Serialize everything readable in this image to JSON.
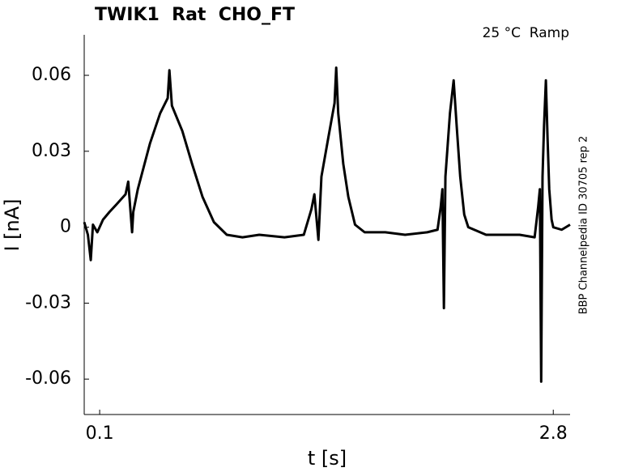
{
  "chart_data": {
    "type": "line",
    "title": "TWIK1  Rat  CHO_FT",
    "annotation": "25 °C  Ramp",
    "side_label": "BBP Channelpedia ID 30705 rep 2",
    "xlabel": "t [s]",
    "ylabel": "I [nA]",
    "color": "#000000",
    "xlim": [
      0.008,
      2.9
    ],
    "ylim": [
      -0.074,
      0.076
    ],
    "xticks": [
      0.1,
      2.8
    ],
    "yticks": [
      -0.06,
      -0.03,
      0,
      0.03,
      0.06
    ],
    "x": [
      0.008,
      0.03,
      0.047,
      0.06,
      0.086,
      0.12,
      0.158,
      0.2,
      0.254,
      0.27,
      0.293,
      0.3,
      0.327,
      0.399,
      0.46,
      0.505,
      0.515,
      0.53,
      0.592,
      0.65,
      0.712,
      0.78,
      0.857,
      0.95,
      1.05,
      1.2,
      1.315,
      1.36,
      1.378,
      1.402,
      1.42,
      1.46,
      1.498,
      1.508,
      1.52,
      1.55,
      1.58,
      1.62,
      1.677,
      1.8,
      1.918,
      2.05,
      2.111,
      2.13,
      2.14,
      2.149,
      2.158,
      2.185,
      2.207,
      2.225,
      2.246,
      2.27,
      2.294,
      2.4,
      2.496,
      2.6,
      2.689,
      2.71,
      2.72,
      2.728,
      2.736,
      2.745,
      2.756,
      2.766,
      2.776,
      2.79,
      2.8,
      2.85,
      2.9
    ],
    "values": [
      0.002,
      -0.003,
      -0.013,
      0.001,
      -0.002,
      0.003,
      0.006,
      0.009,
      0.013,
      0.018,
      -0.002,
      0.006,
      0.015,
      0.033,
      0.045,
      0.051,
      0.062,
      0.048,
      0.038,
      0.025,
      0.012,
      0.002,
      -0.003,
      -0.004,
      -0.003,
      -0.004,
      -0.003,
      0.007,
      0.013,
      -0.005,
      0.02,
      0.035,
      0.049,
      0.063,
      0.045,
      0.025,
      0.012,
      0.001,
      -0.002,
      -0.002,
      -0.003,
      -0.002,
      -0.001,
      0.008,
      0.015,
      -0.032,
      0.02,
      0.045,
      0.058,
      0.04,
      0.02,
      0.005,
      0.0,
      -0.003,
      -0.003,
      -0.003,
      -0.004,
      0.008,
      0.015,
      -0.061,
      0.02,
      0.04,
      0.058,
      0.035,
      0.015,
      0.003,
      0.0,
      -0.001,
      0.001
    ]
  }
}
